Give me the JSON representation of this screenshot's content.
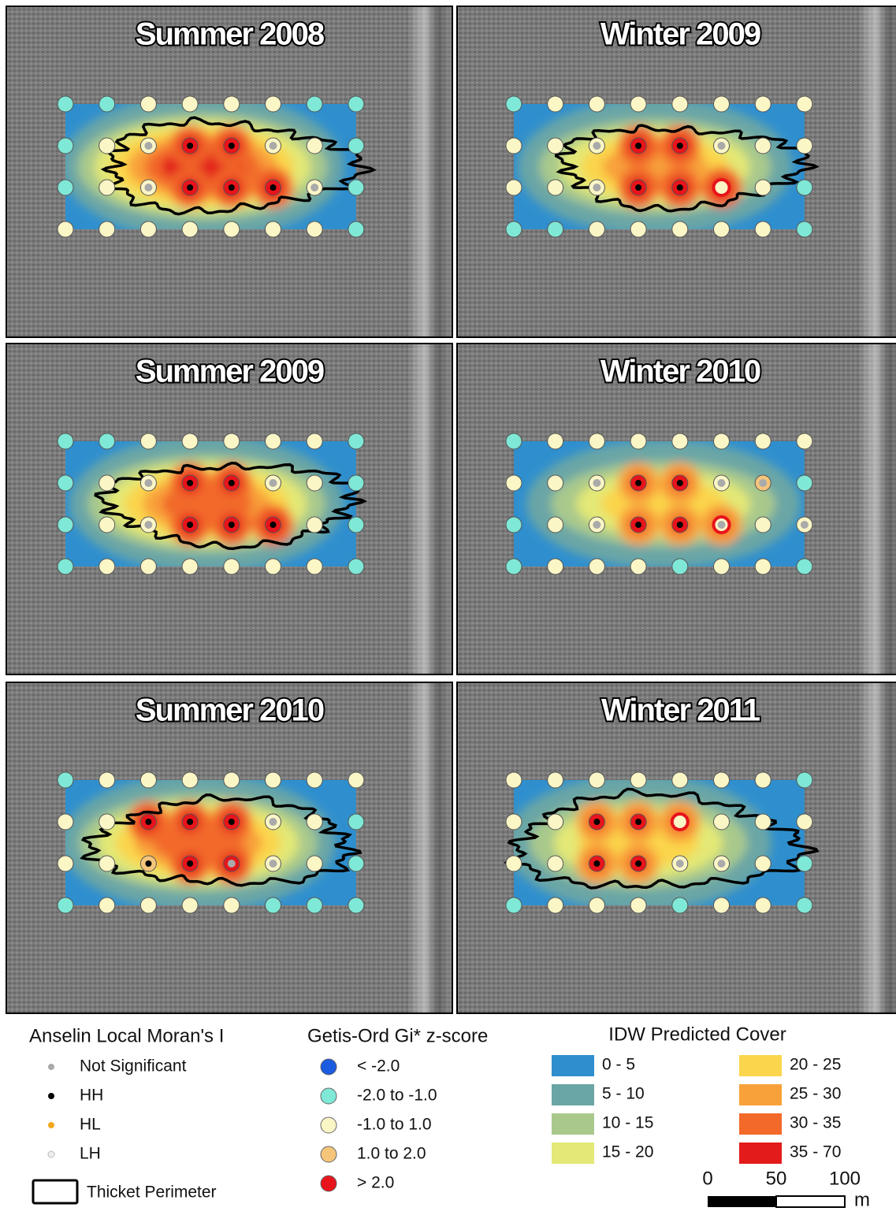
{
  "panels": [
    {
      "title": "Summer 2008"
    },
    {
      "title": "Winter 2009"
    },
    {
      "title": "Summer 2009"
    },
    {
      "title": "Winter 2010"
    },
    {
      "title": "Summer 2010"
    },
    {
      "title": "Winter 2011"
    }
  ],
  "legend": {
    "morans": {
      "title": "Anselin Local Moran's I",
      "items": [
        "Not Significant",
        "HH",
        "HL",
        "LH"
      ]
    },
    "perimeter": "Thicket Perimeter",
    "getis": {
      "title": "Getis-Ord Gi* z-score",
      "items": [
        "< -2.0",
        "-2.0 to -1.0",
        "-1.0 to 1.0",
        "1.0 to 2.0",
        "> 2.0"
      ]
    },
    "idw": {
      "title": "IDW Predicted Cover",
      "items": [
        "0 - 5",
        "5 - 10",
        "10 - 15",
        "15 - 20",
        "20 - 25",
        "25 - 30",
        "30 - 35",
        "35 - 70"
      ]
    }
  },
  "scale_bar": {
    "ticks": [
      0,
      50,
      100
    ],
    "unit": "m"
  }
}
